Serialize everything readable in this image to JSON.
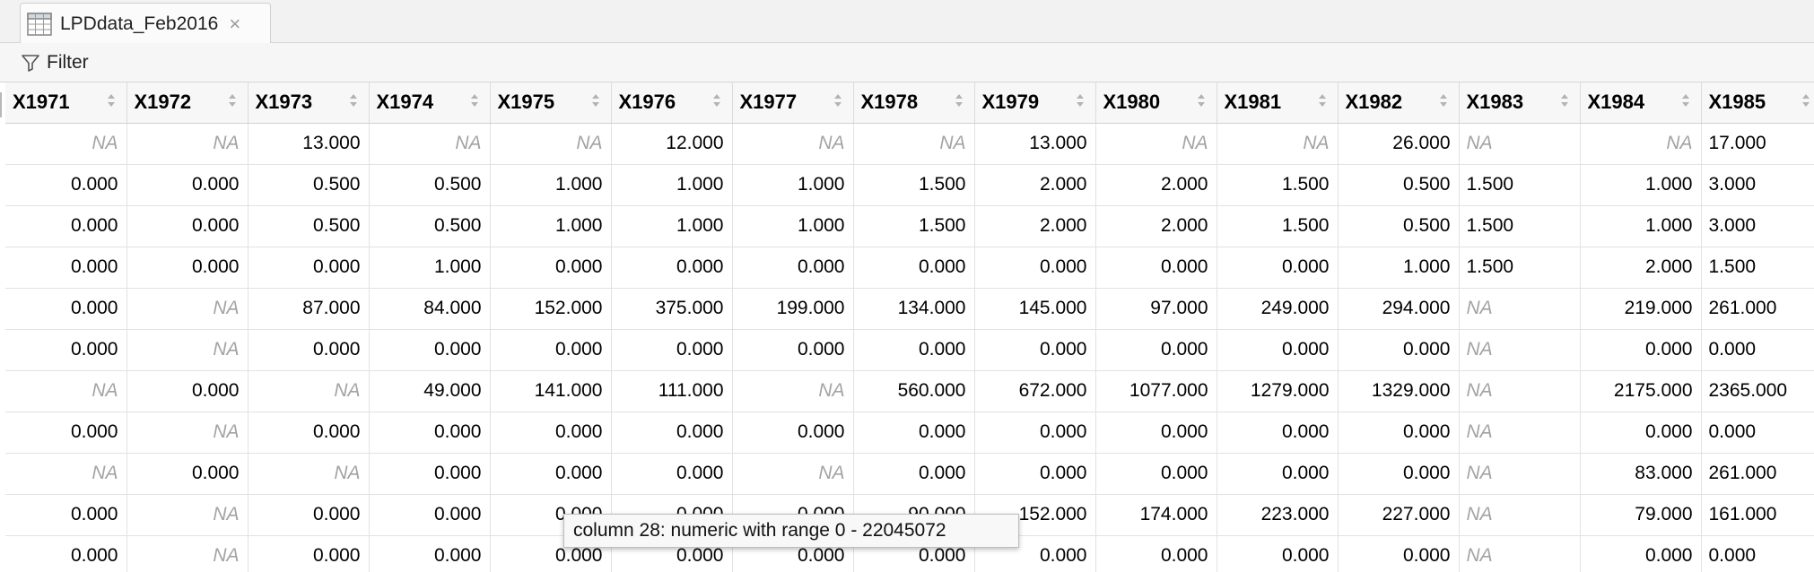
{
  "tab": {
    "title": "LPDdata_Feb2016",
    "close_symbol": "×",
    "icon": "table-icon"
  },
  "toolbar": {
    "filter_label": "Filter",
    "filter_icon": "funnel-icon"
  },
  "table": {
    "columns": [
      "X1971",
      "X1972",
      "X1973",
      "X1974",
      "X1975",
      "X1976",
      "X1977",
      "X1978",
      "X1979",
      "X1980",
      "X1981",
      "X1982",
      "X1983",
      "X1984",
      "X1985"
    ],
    "left_aligned_columns": [
      12,
      14
    ],
    "rows": [
      [
        "NA",
        "NA",
        "13.000",
        "NA",
        "NA",
        "12.000",
        "NA",
        "NA",
        "13.000",
        "NA",
        "NA",
        "26.000",
        "NA",
        "NA",
        "17.000"
      ],
      [
        "0.000",
        "0.000",
        "0.500",
        "0.500",
        "1.000",
        "1.000",
        "1.000",
        "1.500",
        "2.000",
        "2.000",
        "1.500",
        "0.500",
        "1.500",
        "1.000",
        "3.000"
      ],
      [
        "0.000",
        "0.000",
        "0.500",
        "0.500",
        "1.000",
        "1.000",
        "1.000",
        "1.500",
        "2.000",
        "2.000",
        "1.500",
        "0.500",
        "1.500",
        "1.000",
        "3.000"
      ],
      [
        "0.000",
        "0.000",
        "0.000",
        "1.000",
        "0.000",
        "0.000",
        "0.000",
        "0.000",
        "0.000",
        "0.000",
        "0.000",
        "1.000",
        "1.500",
        "2.000",
        "1.500"
      ],
      [
        "0.000",
        "NA",
        "87.000",
        "84.000",
        "152.000",
        "375.000",
        "199.000",
        "134.000",
        "145.000",
        "97.000",
        "249.000",
        "294.000",
        "NA",
        "219.000",
        "261.000"
      ],
      [
        "0.000",
        "NA",
        "0.000",
        "0.000",
        "0.000",
        "0.000",
        "0.000",
        "0.000",
        "0.000",
        "0.000",
        "0.000",
        "0.000",
        "NA",
        "0.000",
        "0.000"
      ],
      [
        "NA",
        "0.000",
        "NA",
        "49.000",
        "141.000",
        "111.000",
        "NA",
        "560.000",
        "672.000",
        "1077.000",
        "1279.000",
        "1329.000",
        "NA",
        "2175.000",
        "2365.000"
      ],
      [
        "0.000",
        "NA",
        "0.000",
        "0.000",
        "0.000",
        "0.000",
        "0.000",
        "0.000",
        "0.000",
        "0.000",
        "0.000",
        "0.000",
        "NA",
        "0.000",
        "0.000"
      ],
      [
        "NA",
        "0.000",
        "NA",
        "0.000",
        "0.000",
        "0.000",
        "NA",
        "0.000",
        "0.000",
        "0.000",
        "0.000",
        "0.000",
        "NA",
        "83.000",
        "261.000"
      ],
      [
        "0.000",
        "NA",
        "0.000",
        "0.000",
        "0.000",
        "0.000",
        "0.000",
        "90.000",
        "152.000",
        "174.000",
        "223.000",
        "227.000",
        "NA",
        "79.000",
        "161.000"
      ],
      [
        "0.000",
        "NA",
        "0.000",
        "0.000",
        "0.000",
        "0.000",
        "0.000",
        "0.000",
        "0.000",
        "0.000",
        "0.000",
        "0.000",
        "NA",
        "0.000",
        "0.000"
      ]
    ]
  },
  "tooltip": {
    "text": "column 28: numeric with range 0 - 22045072"
  },
  "colors": {
    "na_text": "#a3a3a3",
    "header_bg": "#f7f7f7",
    "tab_bar_bg": "#f2f2f2"
  }
}
